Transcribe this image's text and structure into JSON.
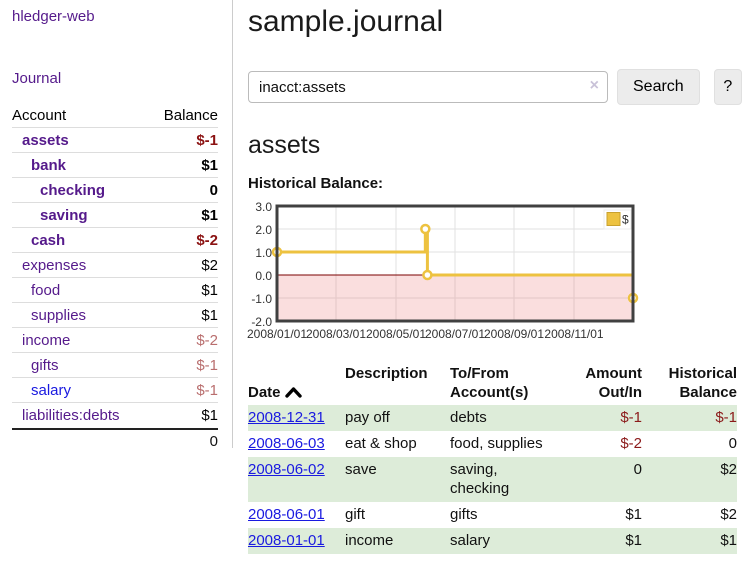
{
  "app": {
    "title": "hledger-web"
  },
  "sidebar": {
    "journal_link": "Journal",
    "accounts": {
      "col_account": "Account",
      "col_balance": "Balance",
      "rows": [
        {
          "label": "assets",
          "balance": "$-1"
        },
        {
          "label": "bank",
          "balance": "$1"
        },
        {
          "label": "checking",
          "balance": "0"
        },
        {
          "label": "saving",
          "balance": "$1"
        },
        {
          "label": "cash",
          "balance": "$-2"
        },
        {
          "label": "expenses",
          "balance": "$2"
        },
        {
          "label": "food",
          "balance": "$1"
        },
        {
          "label": "supplies",
          "balance": "$1"
        },
        {
          "label": "income",
          "balance": "$-2"
        },
        {
          "label": "gifts",
          "balance": "$-1"
        },
        {
          "label": "salary",
          "balance": "$-1"
        },
        {
          "label": "liabilities:debts",
          "balance": "$1"
        }
      ],
      "total": "0"
    }
  },
  "main": {
    "title": "sample.journal",
    "search": {
      "value": "inacct:assets",
      "clear_icon": "×",
      "button": "Search",
      "help_button": "?"
    },
    "account_heading": "assets",
    "chart_label": "Historical Balance:"
  },
  "chart_data": {
    "type": "line",
    "title": "Historical Balance of assets",
    "style": "step-with-markers",
    "series": [
      {
        "name": "$",
        "color": "#edc240",
        "points": [
          {
            "date": "2008-01-01",
            "value": 1
          },
          {
            "date": "2008-06-01",
            "value": 2
          },
          {
            "date": "2008-06-03",
            "value": 0
          },
          {
            "date": "2008-12-31",
            "value": -1
          }
        ]
      }
    ],
    "x_months": [
      0,
      5,
      5.07,
      12
    ],
    "xlim_months": [
      0,
      12
    ],
    "ylim": [
      -2,
      3
    ],
    "yticks": [
      "3.0",
      "2.0",
      "1.0",
      "0.0",
      "-1.0",
      "-2.0"
    ],
    "xticks": [
      "2008/01/01",
      "2008/03/01",
      "2008/05/01",
      "2008/07/01",
      "2008/09/01",
      "2008/11/01"
    ],
    "legend": {
      "label": "$",
      "position": "top-right"
    },
    "grid": true,
    "negative_region_shaded": true,
    "zero_line_color": "#7a0000"
  },
  "register": {
    "headers": {
      "date": "Date",
      "description": "Description",
      "tofrom": "To/From\nAccount(s)",
      "amount": "Amount\nOut/In",
      "historical": "Historical\nBalance"
    },
    "rows": [
      {
        "date": "2008-12-31",
        "description": "pay off",
        "tofrom": "debts",
        "amount": "$-1",
        "historical": "$-1"
      },
      {
        "date": "2008-06-03",
        "description": "eat & shop",
        "tofrom": "food, supplies",
        "amount": "$-2",
        "historical": "0"
      },
      {
        "date": "2008-06-02",
        "description": "save",
        "tofrom": "saving,\nchecking",
        "amount": "0",
        "historical": "$2"
      },
      {
        "date": "2008-06-01",
        "description": "gift",
        "tofrom": "gifts",
        "amount": "$1",
        "historical": "$2"
      },
      {
        "date": "2008-01-01",
        "description": "income",
        "tofrom": "salary",
        "amount": "$1",
        "historical": "$1"
      }
    ]
  }
}
